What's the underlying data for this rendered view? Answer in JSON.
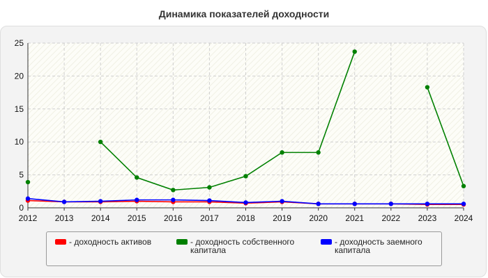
{
  "title": "Динамика показателей доходности",
  "chart_data": {
    "type": "line",
    "title": "Динамика показателей доходности",
    "xlabel": "",
    "ylabel": "",
    "x": [
      "2012",
      "2013",
      "2014",
      "2015",
      "2016",
      "2017",
      "2018",
      "2019",
      "2020",
      "2021",
      "2022",
      "2023",
      "2024"
    ],
    "ylim": [
      0,
      25
    ],
    "yticks": [
      0,
      5,
      10,
      15,
      20,
      25
    ],
    "grid": true,
    "legend_position": "bottom",
    "series": [
      {
        "name": "- доходность активов",
        "color": "#ff0000",
        "values": [
          1.1,
          0.9,
          0.9,
          1.0,
          0.9,
          0.9,
          0.7,
          0.9,
          0.6,
          0.6,
          0.6,
          0.5,
          0.5
        ]
      },
      {
        "name": "- доходность собственного капитала",
        "color": "#008000",
        "values": [
          3.9,
          null,
          10.0,
          4.6,
          2.7,
          3.1,
          4.8,
          8.4,
          8.4,
          23.7,
          null,
          18.3,
          3.3
        ]
      },
      {
        "name": "- доходность заемного капитала",
        "color": "#0000ff",
        "values": [
          1.4,
          0.9,
          1.0,
          1.2,
          1.2,
          1.1,
          0.8,
          1.0,
          0.6,
          0.6,
          0.6,
          0.6,
          0.6
        ]
      }
    ]
  }
}
